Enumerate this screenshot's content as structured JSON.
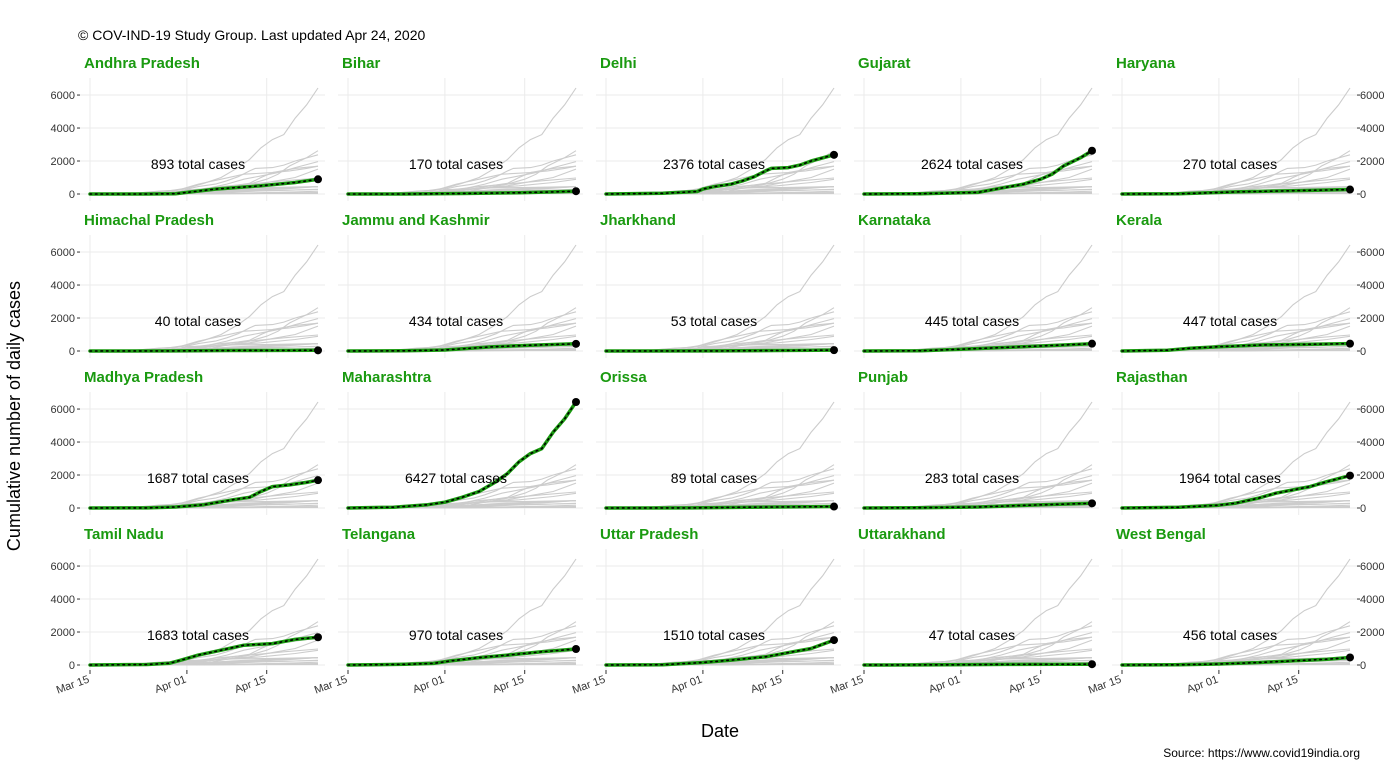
{
  "caption": "© COV-IND-19 Study Group. Last updated Apr 24, 2020",
  "source": "Source: https://www.covid19india.org",
  "colors": {
    "accent": "#1a9a10",
    "background_line": "#cccccc",
    "point": "#000000",
    "grid": "#ebebeb"
  },
  "chart_data": {
    "type": "line",
    "title": "",
    "xlabel": "Date",
    "ylabel": "Cumulative number of daily cases",
    "x_ticks": [
      "Mar 15",
      "Apr 01",
      "Apr 15"
    ],
    "x_tick_days": [
      0,
      17,
      31
    ],
    "x_range_days": [
      0,
      40
    ],
    "y_ticks": [
      0,
      2000,
      4000,
      6000
    ],
    "ylim": [
      0,
      6427
    ],
    "total_suffix": "total cases",
    "grid": true,
    "series": [
      {
        "name": "Andhra Pradesh",
        "total": 893,
        "points": [
          [
            0,
            0
          ],
          [
            10,
            0
          ],
          [
            15,
            20
          ],
          [
            17,
            100
          ],
          [
            22,
            300
          ],
          [
            30,
            500
          ],
          [
            36,
            700
          ],
          [
            40,
            893
          ]
        ]
      },
      {
        "name": "Bihar",
        "total": 170,
        "points": [
          [
            0,
            0
          ],
          [
            10,
            0
          ],
          [
            20,
            30
          ],
          [
            30,
            80
          ],
          [
            36,
            130
          ],
          [
            40,
            170
          ]
        ]
      },
      {
        "name": "Delhi",
        "total": 2376,
        "points": [
          [
            0,
            0
          ],
          [
            10,
            40
          ],
          [
            16,
            150
          ],
          [
            17,
            300
          ],
          [
            19,
            450
          ],
          [
            22,
            600
          ],
          [
            24,
            800
          ],
          [
            26,
            1050
          ],
          [
            28,
            1400
          ],
          [
            29,
            1550
          ],
          [
            32,
            1600
          ],
          [
            34,
            1750
          ],
          [
            36,
            2000
          ],
          [
            40,
            2376
          ]
        ]
      },
      {
        "name": "Gujarat",
        "total": 2624,
        "points": [
          [
            0,
            0
          ],
          [
            10,
            20
          ],
          [
            20,
            100
          ],
          [
            24,
            350
          ],
          [
            28,
            600
          ],
          [
            31,
            900
          ],
          [
            33,
            1200
          ],
          [
            35,
            1700
          ],
          [
            38,
            2200
          ],
          [
            40,
            2624
          ]
        ]
      },
      {
        "name": "Haryana",
        "total": 270,
        "points": [
          [
            0,
            0
          ],
          [
            10,
            10
          ],
          [
            20,
            130
          ],
          [
            30,
            200
          ],
          [
            36,
            240
          ],
          [
            40,
            270
          ]
        ]
      },
      {
        "name": "Himachal Pradesh",
        "total": 40,
        "points": [
          [
            0,
            0
          ],
          [
            15,
            5
          ],
          [
            25,
            30
          ],
          [
            35,
            38
          ],
          [
            40,
            40
          ]
        ]
      },
      {
        "name": "Jammu and Kashmir",
        "total": 434,
        "points": [
          [
            0,
            0
          ],
          [
            10,
            10
          ],
          [
            17,
            60
          ],
          [
            25,
            250
          ],
          [
            32,
            350
          ],
          [
            40,
            434
          ]
        ]
      },
      {
        "name": "Jharkhand",
        "total": 53,
        "points": [
          [
            0,
            0
          ],
          [
            20,
            5
          ],
          [
            30,
            30
          ],
          [
            40,
            53
          ]
        ]
      },
      {
        "name": "Karnataka",
        "total": 445,
        "points": [
          [
            0,
            0
          ],
          [
            10,
            20
          ],
          [
            17,
            110
          ],
          [
            25,
            220
          ],
          [
            32,
            320
          ],
          [
            40,
            445
          ]
        ]
      },
      {
        "name": "Kerala",
        "total": 447,
        "points": [
          [
            0,
            0
          ],
          [
            8,
            50
          ],
          [
            12,
            170
          ],
          [
            17,
            260
          ],
          [
            25,
            370
          ],
          [
            32,
            400
          ],
          [
            40,
            447
          ]
        ]
      },
      {
        "name": "Madhya Pradesh",
        "total": 1687,
        "points": [
          [
            0,
            0
          ],
          [
            10,
            5
          ],
          [
            15,
            60
          ],
          [
            20,
            200
          ],
          [
            25,
            500
          ],
          [
            28,
            650
          ],
          [
            30,
            1000
          ],
          [
            32,
            1300
          ],
          [
            35,
            1400
          ],
          [
            38,
            1550
          ],
          [
            40,
            1687
          ]
        ]
      },
      {
        "name": "Maharashtra",
        "total": 6427,
        "points": [
          [
            0,
            0
          ],
          [
            8,
            50
          ],
          [
            14,
            200
          ],
          [
            17,
            350
          ],
          [
            20,
            650
          ],
          [
            23,
            1000
          ],
          [
            26,
            1600
          ],
          [
            28,
            2100
          ],
          [
            30,
            2800
          ],
          [
            32,
            3300
          ],
          [
            34,
            3600
          ],
          [
            36,
            4600
          ],
          [
            38,
            5400
          ],
          [
            40,
            6427
          ]
        ]
      },
      {
        "name": "Orissa",
        "total": 89,
        "points": [
          [
            0,
            0
          ],
          [
            15,
            5
          ],
          [
            25,
            50
          ],
          [
            35,
            70
          ],
          [
            40,
            89
          ]
        ]
      },
      {
        "name": "Punjab",
        "total": 283,
        "points": [
          [
            0,
            0
          ],
          [
            10,
            20
          ],
          [
            20,
            60
          ],
          [
            30,
            180
          ],
          [
            40,
            283
          ]
        ]
      },
      {
        "name": "Rajasthan",
        "total": 1964,
        "points": [
          [
            0,
            0
          ],
          [
            10,
            40
          ],
          [
            17,
            170
          ],
          [
            20,
            300
          ],
          [
            24,
            600
          ],
          [
            27,
            900
          ],
          [
            30,
            1100
          ],
          [
            33,
            1300
          ],
          [
            36,
            1600
          ],
          [
            40,
            1964
          ]
        ]
      },
      {
        "name": "Tamil Nadu",
        "total": 1683,
        "points": [
          [
            0,
            0
          ],
          [
            10,
            30
          ],
          [
            14,
            110
          ],
          [
            16,
            300
          ],
          [
            19,
            600
          ],
          [
            23,
            900
          ],
          [
            27,
            1200
          ],
          [
            32,
            1300
          ],
          [
            36,
            1550
          ],
          [
            40,
            1683
          ]
        ]
      },
      {
        "name": "Telangana",
        "total": 970,
        "points": [
          [
            0,
            0
          ],
          [
            10,
            40
          ],
          [
            15,
            100
          ],
          [
            18,
            250
          ],
          [
            23,
            450
          ],
          [
            28,
            600
          ],
          [
            34,
            800
          ],
          [
            40,
            970
          ]
        ]
      },
      {
        "name": "Uttar Pradesh",
        "total": 1510,
        "points": [
          [
            0,
            0
          ],
          [
            10,
            20
          ],
          [
            17,
            150
          ],
          [
            22,
            300
          ],
          [
            28,
            500
          ],
          [
            32,
            750
          ],
          [
            36,
            1000
          ],
          [
            40,
            1510
          ]
        ]
      },
      {
        "name": "Uttarakhand",
        "total": 47,
        "points": [
          [
            0,
            0
          ],
          [
            15,
            10
          ],
          [
            25,
            35
          ],
          [
            35,
            45
          ],
          [
            40,
            47
          ]
        ]
      },
      {
        "name": "West Bengal",
        "total": 456,
        "points": [
          [
            0,
            0
          ],
          [
            10,
            10
          ],
          [
            17,
            60
          ],
          [
            24,
            150
          ],
          [
            30,
            250
          ],
          [
            36,
            350
          ],
          [
            40,
            456
          ]
        ]
      }
    ]
  }
}
